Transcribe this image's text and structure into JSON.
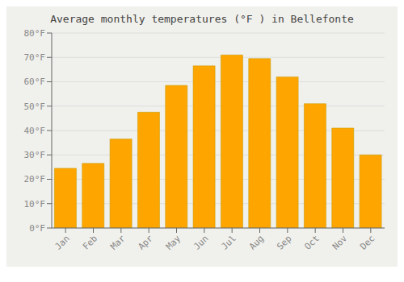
{
  "chart_data": {
    "type": "bar",
    "title": "Average monthly temperatures (°F ) in Bellefonte",
    "categories": [
      "Jan",
      "Feb",
      "Mar",
      "Apr",
      "May",
      "Jun",
      "Jul",
      "Aug",
      "Sep",
      "Oct",
      "Nov",
      "Dec"
    ],
    "values": [
      24.5,
      26.5,
      36.5,
      47.5,
      58.5,
      66.5,
      71.0,
      69.5,
      62.0,
      51.0,
      41.0,
      30.0
    ],
    "color": "#FFA500",
    "ylim": [
      0,
      80
    ],
    "yticks": [
      {
        "value": 0,
        "label": "0°F"
      },
      {
        "value": 10,
        "label": "10°F"
      },
      {
        "value": 20,
        "label": "20°F"
      },
      {
        "value": 30,
        "label": "30°F"
      },
      {
        "value": 40,
        "label": "40°F"
      },
      {
        "value": 50,
        "label": "50°F"
      },
      {
        "value": 60,
        "label": "60°F"
      },
      {
        "value": 70,
        "label": "70°F"
      },
      {
        "value": 80,
        "label": "80°F"
      }
    ],
    "grid": true
  }
}
